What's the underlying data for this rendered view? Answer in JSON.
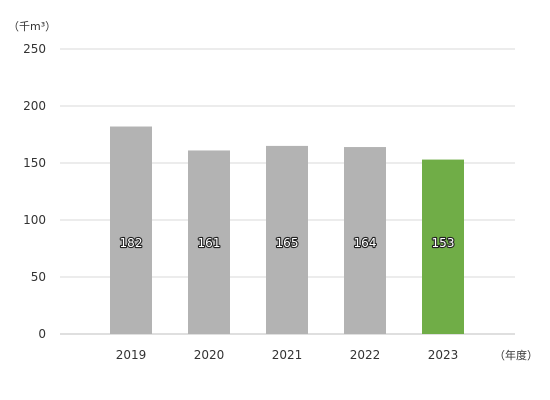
{
  "chart_data": {
    "type": "bar",
    "categories": [
      "2019",
      "2020",
      "2021",
      "2022",
      "2023"
    ],
    "series": [
      {
        "values": [
          182,
          161,
          165,
          164,
          153
        ]
      }
    ],
    "data_labels": [
      "182",
      "161",
      "165",
      "164",
      "153"
    ],
    "y_unit_label": "（千m³）",
    "x_unit_label": "（年度）",
    "yticks": [
      0,
      50,
      100,
      150,
      200,
      250
    ],
    "ylim": [
      0,
      250
    ],
    "grid": true,
    "legend": "none",
    "colors": {
      "bar_default": "#b3b3b3",
      "bar_highlight": "#70ad47",
      "grid": "#d9d9d9",
      "axis": "#bfbfbf"
    },
    "highlight_index": 4
  }
}
